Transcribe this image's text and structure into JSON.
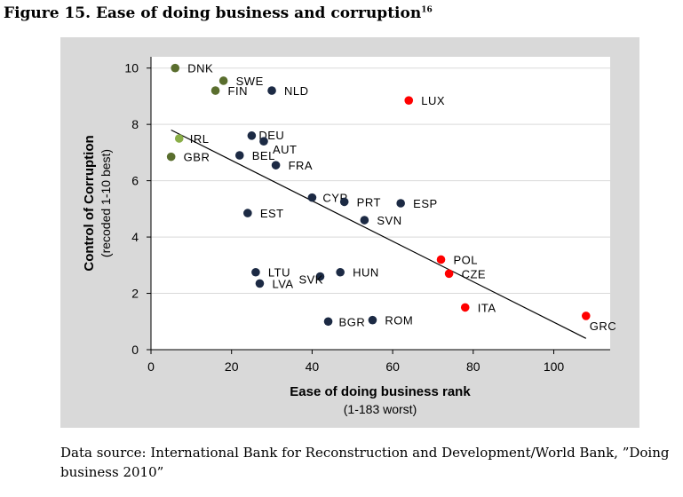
{
  "figure": {
    "title": "Figure 15. Ease of doing business and corruption",
    "footnote_marker": "16",
    "source": "Data source: International Bank for Reconstruction and Development/World Bank, ”Doing business 2010”"
  },
  "colors": {
    "panel_bg": "#d9d9d9",
    "plot_bg": "#ffffff",
    "dark_navy": "#1c2a44",
    "olive_green": "#5a6e2e",
    "light_green": "#8aae48",
    "red": "#ff0000",
    "trend_line": "#000000"
  },
  "chart_data": {
    "type": "scatter",
    "xlabel": "Ease of doing business rank",
    "xlabel_sub": "(1-183 worst)",
    "ylabel": "Control of Corruption",
    "ylabel_sub": "(recoded 1-10 best)",
    "xlim": [
      0,
      114
    ],
    "ylim": [
      0,
      10.4
    ],
    "xticks": [
      0,
      20,
      40,
      60,
      80,
      100
    ],
    "yticks": [
      0,
      2,
      4,
      6,
      8,
      10
    ],
    "grid": "horizontal",
    "legend": "none",
    "trend_line": {
      "x": [
        5,
        108
      ],
      "y": [
        7.8,
        0.4
      ]
    },
    "points": [
      {
        "label": "DNK",
        "x": 6,
        "y": 10.0,
        "color": "olive_green"
      },
      {
        "label": "SWE",
        "x": 18,
        "y": 9.55,
        "color": "olive_green"
      },
      {
        "label": "FIN",
        "x": 16,
        "y": 9.2,
        "color": "olive_green"
      },
      {
        "label": "NLD",
        "x": 30,
        "y": 9.2,
        "color": "dark_navy"
      },
      {
        "label": "LUX",
        "x": 64,
        "y": 8.85,
        "color": "red"
      },
      {
        "label": "IRL",
        "x": 7,
        "y": 7.5,
        "color": "light_green"
      },
      {
        "label": "DEU",
        "x": 25,
        "y": 7.6,
        "color": "dark_navy"
      },
      {
        "label": "AUT",
        "x": 28,
        "y": 7.4,
        "color": "dark_navy"
      },
      {
        "label": "GBR",
        "x": 5,
        "y": 6.85,
        "color": "olive_green"
      },
      {
        "label": "BEL",
        "x": 22,
        "y": 6.9,
        "color": "dark_navy"
      },
      {
        "label": "FRA",
        "x": 31,
        "y": 6.55,
        "color": "dark_navy"
      },
      {
        "label": "CYP",
        "x": 40,
        "y": 5.4,
        "color": "dark_navy"
      },
      {
        "label": "PRT",
        "x": 48,
        "y": 5.25,
        "color": "dark_navy"
      },
      {
        "label": "ESP",
        "x": 62,
        "y": 5.2,
        "color": "dark_navy"
      },
      {
        "label": "EST",
        "x": 24,
        "y": 4.85,
        "color": "dark_navy"
      },
      {
        "label": "SVN",
        "x": 53,
        "y": 4.6,
        "color": "dark_navy"
      },
      {
        "label": "POL",
        "x": 72,
        "y": 3.2,
        "color": "red"
      },
      {
        "label": "CZE",
        "x": 74,
        "y": 2.7,
        "color": "red"
      },
      {
        "label": "LTU",
        "x": 26,
        "y": 2.75,
        "color": "dark_navy"
      },
      {
        "label": "HUN",
        "x": 47,
        "y": 2.75,
        "color": "dark_navy"
      },
      {
        "label": "SVK",
        "x": 42,
        "y": 2.6,
        "color": "dark_navy"
      },
      {
        "label": "LVA",
        "x": 27,
        "y": 2.35,
        "color": "dark_navy"
      },
      {
        "label": "ITA",
        "x": 78,
        "y": 1.5,
        "color": "red"
      },
      {
        "label": "GRC",
        "x": 108,
        "y": 1.2,
        "color": "red"
      },
      {
        "label": "BGR",
        "x": 44,
        "y": 1.0,
        "color": "dark_navy"
      },
      {
        "label": "ROM",
        "x": 55,
        "y": 1.05,
        "color": "dark_navy"
      }
    ]
  }
}
